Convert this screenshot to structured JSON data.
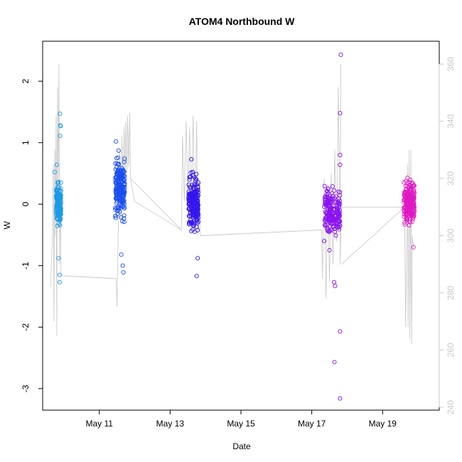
{
  "chart_data": {
    "type": "scatter",
    "title": "ATOM4 Northbound W",
    "xlabel": "Date",
    "ylabel": "W",
    "y2label": "",
    "xlim": [
      9.4,
      20.6
    ],
    "ylim": [
      -3.35,
      2.65
    ],
    "y2lim": [
      239,
      368
    ],
    "xticks": [
      {
        "value": 11,
        "label": "May 11"
      },
      {
        "value": 13,
        "label": "May 13"
      },
      {
        "value": 15,
        "label": "May 15"
      },
      {
        "value": 17,
        "label": "May 17"
      },
      {
        "value": 19,
        "label": "May 19"
      }
    ],
    "yticks": [
      -3,
      -2,
      -1,
      0,
      1,
      2
    ],
    "y2ticks": [
      240,
      260,
      280,
      300,
      320,
      340,
      360
    ],
    "grid": false,
    "legend": "none",
    "secondary_line_color": "#c8c8c8",
    "series": [
      {
        "color": "#1a9ae6",
        "x_range": [
          9.78,
          9.92
        ],
        "center": 0.0,
        "spread": 0.22,
        "n": 150,
        "outliers": [
          [
            9.89,
            1.47
          ],
          [
            9.9,
            1.28
          ],
          [
            9.91,
            1.27
          ],
          [
            9.89,
            1.11
          ],
          [
            9.8,
            0.64
          ],
          [
            9.85,
            -0.88
          ],
          [
            9.88,
            -1.15
          ],
          [
            9.88,
            -1.27
          ],
          [
            9.74,
            0.52
          ]
        ]
      },
      {
        "color": "#1a4ef0",
        "x_range": [
          11.45,
          11.72
        ],
        "center": 0.28,
        "spread": 0.32,
        "n": 220,
        "outliers": [
          [
            11.66,
            -1.0
          ],
          [
            11.68,
            -1.11
          ],
          [
            11.62,
            -0.82
          ],
          [
            11.47,
            1.02
          ]
        ]
      },
      {
        "color": "#3515ee",
        "x_range": [
          13.52,
          13.8
        ],
        "center": 0.0,
        "spread": 0.3,
        "n": 220,
        "outliers": [
          [
            13.75,
            -1.17
          ],
          [
            13.78,
            -0.88
          ],
          [
            13.6,
            0.73
          ]
        ]
      },
      {
        "color": "#8a12f2",
        "x_range": [
          17.35,
          17.8
        ],
        "center": -0.12,
        "spread": 0.24,
        "n": 190,
        "outliers": [
          [
            17.82,
            2.43
          ],
          [
            17.8,
            1.48
          ],
          [
            17.8,
            0.8
          ],
          [
            17.8,
            0.64
          ],
          [
            17.63,
            -1.27
          ],
          [
            17.66,
            -1.33
          ],
          [
            17.8,
            -2.07
          ],
          [
            17.64,
            -2.57
          ],
          [
            17.8,
            -3.16
          ],
          [
            17.35,
            -0.6
          ],
          [
            17.5,
            -0.75
          ]
        ]
      },
      {
        "color": "#e018c4",
        "x_range": [
          19.6,
          19.9
        ],
        "center": 0.05,
        "spread": 0.24,
        "n": 200,
        "outliers": [
          [
            19.63,
            -0.33
          ],
          [
            19.87,
            -0.7
          ]
        ]
      }
    ],
    "secondary_line": [
      [
        9.62,
        282
      ],
      [
        9.68,
        300
      ],
      [
        9.7,
        325
      ],
      [
        9.72,
        270
      ],
      [
        9.74,
        330
      ],
      [
        9.76,
        300
      ],
      [
        9.78,
        342
      ],
      [
        9.8,
        265
      ],
      [
        9.82,
        352
      ],
      [
        9.84,
        318
      ],
      [
        9.86,
        360
      ],
      [
        9.88,
        290
      ],
      [
        9.9,
        320
      ],
      [
        9.92,
        286
      ],
      [
        11.48,
        285
      ],
      [
        11.5,
        275
      ],
      [
        11.53,
        300
      ],
      [
        11.56,
        310
      ],
      [
        11.58,
        330
      ],
      [
        11.61,
        305
      ],
      [
        11.64,
        335
      ],
      [
        11.67,
        312
      ],
      [
        11.7,
        338
      ],
      [
        11.72,
        318
      ],
      [
        11.75,
        340
      ],
      [
        11.78,
        322
      ],
      [
        11.8,
        342
      ],
      [
        11.83,
        324
      ],
      [
        11.86,
        343
      ],
      [
        11.88,
        320
      ],
      [
        12.0,
        312
      ],
      [
        13.32,
        302
      ],
      [
        13.35,
        335
      ],
      [
        13.4,
        312
      ],
      [
        13.45,
        340
      ],
      [
        13.5,
        314
      ],
      [
        13.55,
        338
      ],
      [
        13.6,
        310
      ],
      [
        13.65,
        342
      ],
      [
        13.7,
        305
      ],
      [
        13.75,
        340
      ],
      [
        13.78,
        300
      ],
      [
        13.82,
        320
      ],
      [
        13.85,
        300
      ],
      [
        17.28,
        302
      ],
      [
        17.3,
        285
      ],
      [
        17.35,
        320
      ],
      [
        17.4,
        278
      ],
      [
        17.45,
        318
      ],
      [
        17.5,
        284
      ],
      [
        17.55,
        322
      ],
      [
        17.6,
        290
      ],
      [
        17.65,
        330
      ],
      [
        17.7,
        298
      ],
      [
        17.75,
        352
      ],
      [
        17.8,
        300
      ],
      [
        17.82,
        360
      ],
      [
        17.8,
        290
      ],
      [
        17.84,
        310
      ],
      [
        19.62,
        310
      ],
      [
        19.65,
        268
      ],
      [
        19.7,
        325
      ],
      [
        19.72,
        268
      ],
      [
        19.75,
        330
      ],
      [
        19.77,
        264
      ],
      [
        19.8,
        330
      ],
      [
        19.82,
        262
      ],
      [
        19.84,
        300
      ],
      [
        19.87,
        296
      ]
    ],
    "secondary_connectors": [
      [
        [
          9.92,
          286
        ],
        [
          11.45,
          285
        ]
      ],
      [
        [
          11.88,
          320
        ],
        [
          13.32,
          302
        ]
      ],
      [
        [
          13.85,
          300
        ],
        [
          17.28,
          302
        ]
      ],
      [
        [
          17.84,
          290
        ],
        [
          19.62,
          310
        ]
      ]
    ]
  }
}
